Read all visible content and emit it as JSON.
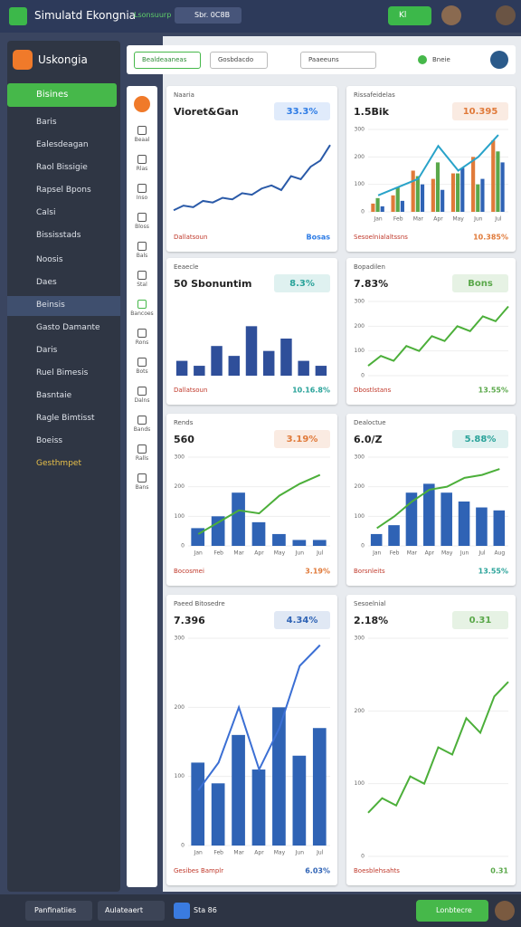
{
  "topbar": {
    "app_title": "Simulatd Ekongnia",
    "subtitle": "Lsonsuurp",
    "search": "Sbr. 0C8B",
    "action": "Kl"
  },
  "sidebar": {
    "brand": "Uskongia",
    "active": "Bisines",
    "items": [
      "Baris",
      "Ealesdeagan",
      "Raol Bissigie",
      "Rapsel Bpons",
      "Calsi",
      "Bississtads",
      "Noosis",
      "Daes",
      "Beinsis",
      "Gasto Damante",
      "Daris",
      "Ruel Bimesis",
      "Basntaie",
      "Ragle Bimtisst",
      "Boeiss",
      "Gesthmpet"
    ]
  },
  "iconbar": {
    "labels": [
      "Beaal",
      "Rlas",
      "Inso",
      "Bloss",
      "Bals",
      "Stal",
      "Bancoes",
      "Rons",
      "Bots",
      "Dalns",
      "Bands",
      "Ralls",
      "Bans"
    ]
  },
  "toolbar": {
    "buttons": [
      "Bealdeaaneas",
      "Gosbdacdo",
      "Paaeeuns"
    ],
    "status": "Bneie"
  },
  "cards": [
    {
      "header": "Naaria",
      "title": "Vioret&Gan",
      "value": "33.3%",
      "accent": "#2c7be5",
      "footer": [
        "Dallatsoun",
        "Bosas"
      ],
      "chart": {
        "type": "line",
        "ylim": [
          0,
          300
        ],
        "series": [
          {
            "type": "line",
            "color": "#2a5aa8",
            "values": [
              40,
              55,
              50,
              70,
              65,
              80,
              75,
              95,
              90,
              110,
              120,
              105,
              150,
              140,
              180,
              200,
              250
            ]
          }
        ]
      }
    },
    {
      "header": "Rissafeidelas",
      "title": "1.5Bik",
      "value": "10.395",
      "accent": "#e07a3a",
      "footer": [
        "Sesoelnialaltssns",
        "10.385%"
      ],
      "chart": {
        "type": "combo",
        "ylim": [
          0,
          300
        ],
        "yticks": [
          0,
          100,
          200,
          300
        ],
        "categories": [
          "Jan",
          "Feb",
          "Mar",
          "Apr",
          "May",
          "Jun",
          "Jul"
        ],
        "series": [
          {
            "type": "bar",
            "color": "#e07a3a",
            "values": [
              30,
              60,
              150,
              120,
              140,
              200,
              260
            ]
          },
          {
            "type": "bar",
            "color": "#5aa84a",
            "values": [
              50,
              90,
              130,
              180,
              140,
              100,
              220
            ]
          },
          {
            "type": "bar",
            "color": "#2f63b5",
            "values": [
              20,
              40,
              100,
              80,
              160,
              120,
              180
            ]
          },
          {
            "type": "line",
            "color": "#29a3c9",
            "values": [
              60,
              90,
              120,
              240,
              150,
              200,
              280
            ]
          }
        ]
      }
    },
    {
      "header": "Eeaecle",
      "title": "50 Sbonuntim",
      "value": "8.3%",
      "accent": "#2aa39a",
      "footer": [
        "Dallatsoun",
        "10.16.8%"
      ],
      "chart": {
        "type": "bar",
        "ylim": [
          0,
          300
        ],
        "series": [
          {
            "type": "bar",
            "color": "#2f4f9a",
            "values": [
              60,
              40,
              120,
              80,
              200,
              100,
              150,
              60,
              40
            ]
          }
        ]
      }
    },
    {
      "header": "Bopadilen",
      "title": "7.83%",
      "value": "Bons",
      "accent": "#5aa84a",
      "footer": [
        "Dbostlstans",
        "13.55%"
      ],
      "chart": {
        "type": "line",
        "ylim": [
          0,
          300
        ],
        "yticks": [
          0,
          100,
          200,
          300
        ],
        "series": [
          {
            "type": "line",
            "color": "#4caf3a",
            "values": [
              40,
              80,
              60,
              120,
              100,
              160,
              140,
              200,
              180,
              240,
              220,
              280
            ]
          }
        ]
      }
    },
    {
      "header": "Rends",
      "title": "560",
      "value": "3.19%",
      "accent": "#e07a3a",
      "footer": [
        "Bocosmei",
        "3.19%"
      ],
      "chart": {
        "type": "combo",
        "ylim": [
          0,
          300
        ],
        "yticks": [
          0,
          100,
          200,
          300
        ],
        "categories": [
          "Jan",
          "Feb",
          "Mar",
          "Apr",
          "May",
          "Jun",
          "Jul"
        ],
        "series": [
          {
            "type": "bar",
            "color": "#2f63b5",
            "values": [
              60,
              100,
              180,
              80,
              40,
              20,
              20
            ]
          },
          {
            "type": "line",
            "color": "#4caf3a",
            "values": [
              40,
              80,
              120,
              110,
              170,
              210,
              240
            ]
          }
        ]
      }
    },
    {
      "header": "Dealoctue",
      "title": "6.0/Z",
      "value": "5.88%",
      "accent": "#2aa39a",
      "footer": [
        "Borsnleits",
        "13.55%"
      ],
      "chart": {
        "type": "combo",
        "ylim": [
          0,
          300
        ],
        "yticks": [
          0,
          100,
          200,
          300
        ],
        "categories": [
          "Jan",
          "Feb",
          "Mar",
          "Apr",
          "May",
          "Jun",
          "Jul",
          "Aug"
        ],
        "series": [
          {
            "type": "bar",
            "color": "#2f63b5",
            "values": [
              40,
              70,
              180,
              210,
              180,
              150,
              130,
              120
            ]
          },
          {
            "type": "line",
            "color": "#4caf3a",
            "values": [
              60,
              100,
              150,
              190,
              200,
              230,
              240,
              260
            ]
          }
        ]
      }
    },
    {
      "header": "Paeed Bitosedre",
      "title": "7.396",
      "value": "4.34%",
      "accent": "#2f63b5",
      "footer": [
        "Gesibes Bamplr",
        "6.03%"
      ],
      "chart": {
        "type": "combo",
        "ylim": [
          0,
          300
        ],
        "yticks": [
          0,
          100,
          200,
          300
        ],
        "categories": [
          "Jan",
          "Feb",
          "Mar",
          "Apr",
          "May",
          "Jun",
          "Jul"
        ],
        "series": [
          {
            "type": "bar",
            "color": "#2f63b5",
            "values": [
              120,
              90,
              160,
              110,
              200,
              130,
              170
            ]
          },
          {
            "type": "line",
            "color": "#3b6fd4",
            "values": [
              80,
              120,
              200,
              110,
              170,
              260,
              290
            ]
          }
        ]
      }
    },
    {
      "header": "Sesoelnial",
      "title": "2.18%",
      "value": "0.31",
      "accent": "#5aa84a",
      "footer": [
        "Boesblehsahts",
        "0.31"
      ],
      "chart": {
        "type": "line",
        "ylim": [
          0,
          300
        ],
        "yticks": [
          0,
          100,
          200,
          300
        ],
        "series": [
          {
            "type": "line",
            "color": "#4caf3a",
            "values": [
              60,
              80,
              70,
              110,
              100,
              150,
              140,
              190,
              170,
              220,
              240
            ]
          }
        ]
      }
    }
  ],
  "bottombar": {
    "select1": "Panfinatiies",
    "select2": "Aulateaert",
    "label": "Sta 86",
    "button": "Lonbtecre"
  }
}
